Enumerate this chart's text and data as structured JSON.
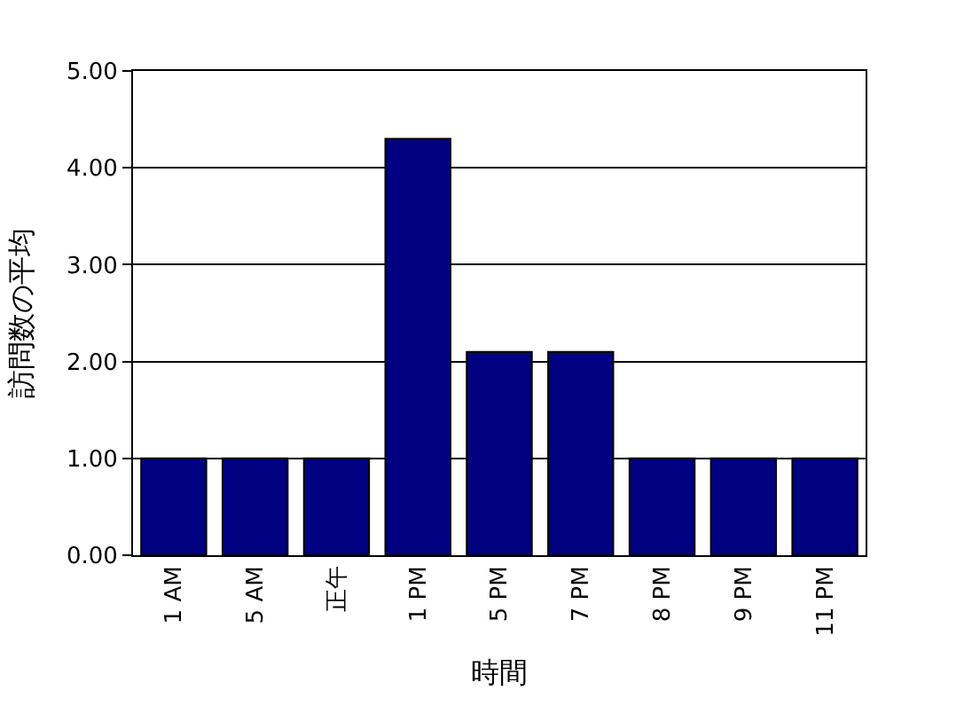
{
  "chart_data": {
    "type": "bar",
    "xlabel": "時間",
    "ylabel": "訪問数の平均",
    "categories": [
      "1 AM",
      "5 AM",
      "正午",
      "1 PM",
      "5 PM",
      "7 PM",
      "8 PM",
      "9 PM",
      "11 PM"
    ],
    "values": [
      1.0,
      1.0,
      1.0,
      4.3,
      2.1,
      2.1,
      1.0,
      1.0,
      1.0
    ],
    "color": "#000080",
    "ylim": [
      0,
      5
    ],
    "yticks": [
      {
        "value": 0,
        "label": "0.00"
      },
      {
        "value": 1,
        "label": "1.00"
      },
      {
        "value": 2,
        "label": "2.00"
      },
      {
        "value": 3,
        "label": "3.00"
      },
      {
        "value": 4,
        "label": "4.00"
      },
      {
        "value": 5,
        "label": "5.00"
      }
    ],
    "grid": "y",
    "legend": false
  }
}
